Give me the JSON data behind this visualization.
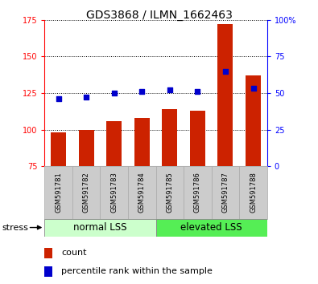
{
  "title": "GDS3868 / ILMN_1662463",
  "samples": [
    "GSM591781",
    "GSM591782",
    "GSM591783",
    "GSM591784",
    "GSM591785",
    "GSM591786",
    "GSM591787",
    "GSM591788"
  ],
  "bar_values": [
    98,
    100,
    106,
    108,
    114,
    113,
    172,
    137
  ],
  "percentile_values": [
    46,
    47,
    50,
    51,
    52,
    51,
    65,
    53
  ],
  "bar_color": "#cc2200",
  "marker_color": "#0000cc",
  "ylim_left": [
    75,
    175
  ],
  "ylim_right": [
    0,
    100
  ],
  "yticks_left": [
    75,
    100,
    125,
    150,
    175
  ],
  "yticks_right": [
    0,
    25,
    50,
    75,
    100
  ],
  "ytick_labels_right": [
    "0",
    "25",
    "50",
    "75",
    "100%"
  ],
  "ytick_labels_left": [
    "75",
    "100",
    "125",
    "150",
    "175"
  ],
  "group1_label": "normal LSS",
  "group2_label": "elevated LSS",
  "group1_color": "#ccffcc",
  "group2_color": "#55ee55",
  "stress_label": "stress",
  "legend_count": "count",
  "legend_percentile": "percentile rank within the sample",
  "bar_width": 0.55,
  "title_fontsize": 10,
  "label_fontsize": 7,
  "legend_fontsize": 8,
  "group_fontsize": 8.5,
  "sample_color": "#cccccc",
  "sample_edge_color": "#aaaaaa"
}
